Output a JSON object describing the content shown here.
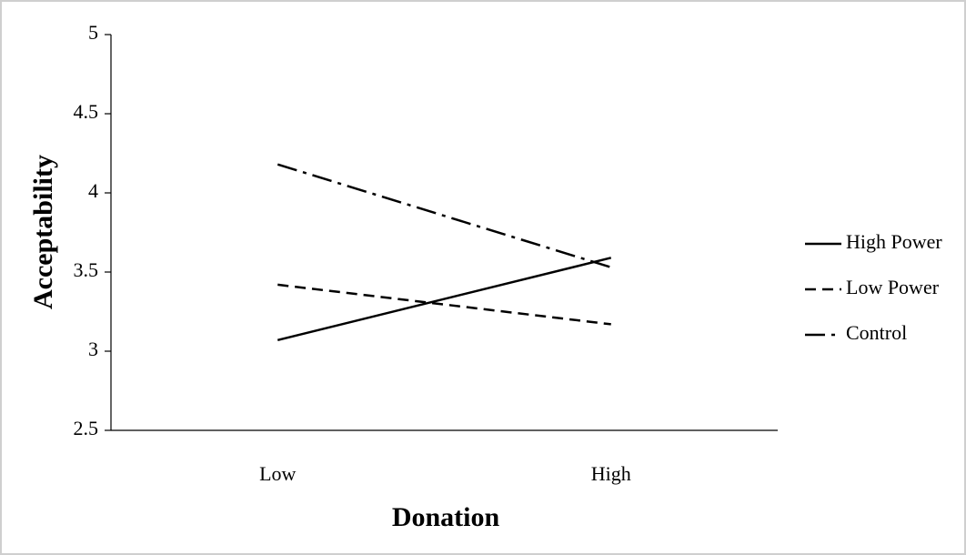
{
  "chart_data": {
    "type": "line",
    "x_label": "Donation",
    "y_label": "Acceptability",
    "categories": [
      "Low",
      "High"
    ],
    "series": [
      {
        "name": "High Power",
        "color": "#000000",
        "dash": "solid",
        "values": [
          3.07,
          3.59
        ]
      },
      {
        "name": "Low Power",
        "color": "#000000",
        "dash": "dashed",
        "values": [
          3.42,
          3.17
        ]
      },
      {
        "name": "Control",
        "color": "#000000",
        "dash": "dashdot",
        "values": [
          4.18,
          3.53
        ]
      }
    ],
    "ylim": [
      2.5,
      5
    ],
    "yticks": [
      2.5,
      3,
      3.5,
      4,
      4.5,
      5
    ],
    "grid": false,
    "legend": "right"
  }
}
